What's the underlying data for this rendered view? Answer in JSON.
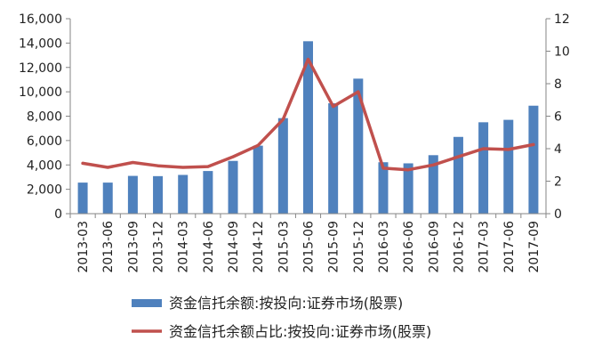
{
  "chart_data": {
    "type": "bar+line",
    "categories": [
      "2013-03",
      "2013-06",
      "2013-09",
      "2013-12",
      "2014-03",
      "2014-06",
      "2014-09",
      "2014-12",
      "2015-03",
      "2015-06",
      "2015-09",
      "2015-12",
      "2016-03",
      "2016-06",
      "2016-09",
      "2016-12",
      "2017-03",
      "2017-06",
      "2017-09"
    ],
    "series": [
      {
        "name": "资金信托余额:按投向:证券市场(股票)",
        "type": "bar",
        "axis": "left",
        "color": "#4f81bd",
        "values": [
          2550,
          2550,
          3100,
          3080,
          3180,
          3500,
          4330,
          5580,
          7840,
          14150,
          9060,
          11080,
          4220,
          4130,
          4800,
          6300,
          7500,
          7700,
          8860
        ]
      },
      {
        "name": "资金信托余额占比:按投向:证券市场(股票)",
        "type": "line",
        "axis": "right",
        "color": "#c0504d",
        "values": [
          3.1,
          2.85,
          3.15,
          2.95,
          2.85,
          2.9,
          3.5,
          4.2,
          5.8,
          9.5,
          6.6,
          7.5,
          2.8,
          2.7,
          3.0,
          3.5,
          4.0,
          3.95,
          4.25
        ]
      }
    ],
    "y_left": {
      "min": 0,
      "max": 16000,
      "ticks": [
        "0",
        "2,000",
        "4,000",
        "6,000",
        "8,000",
        "10,000",
        "12,000",
        "14,000",
        "16,000"
      ]
    },
    "y_right": {
      "min": 0,
      "max": 12,
      "ticks": [
        "0",
        "2",
        "4",
        "6",
        "8",
        "10",
        "12"
      ]
    },
    "grid": false,
    "legend_position": "bottom"
  }
}
